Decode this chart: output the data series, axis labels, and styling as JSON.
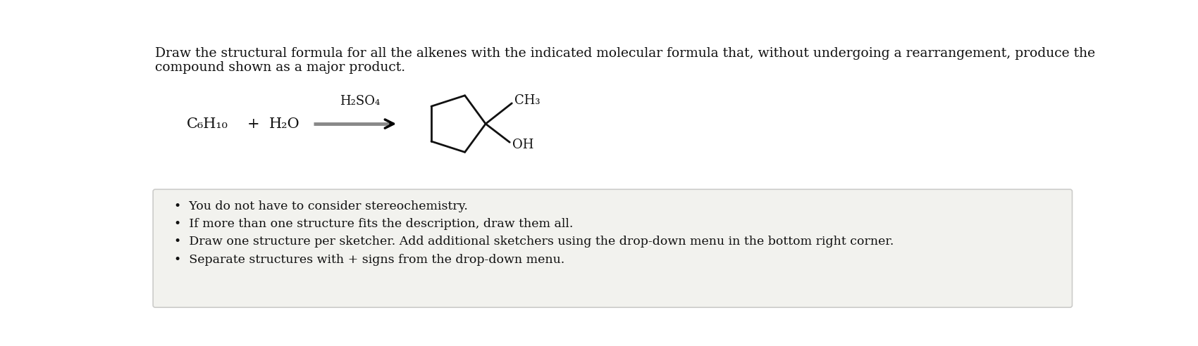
{
  "bg_color": "#ffffff",
  "panel_bg": "#f2f2ee",
  "title_line1": "Draw the structural formula for all the alkenes with the indicated molecular formula that, without undergoing a rearrangement, produce the",
  "title_line2": "compound shown as a major product.",
  "title_fontsize": 13.5,
  "reactant1": "C₆H₁₀",
  "plus": "+",
  "reactant2": "H₂O",
  "catalyst": "H₂SO₄",
  "ch3_label": "CH₃",
  "oh_label": "OH",
  "bullet_points": [
    "You do not have to consider stereochemistry.",
    "If more than one structure fits the description, draw them all.",
    "Draw one structure per sketcher. Add additional sketchers using the drop-down menu in the bottom right corner.",
    "Separate structures with + signs from the drop-down menu."
  ],
  "bullet_fontsize": 12.5,
  "text_color": "#111111",
  "line_color": "#111111",
  "line_width": 2.0,
  "arrow_gray": "#888888",
  "reactant_fontsize": 15,
  "catalyst_fontsize": 13,
  "mol_fontsize": 13
}
